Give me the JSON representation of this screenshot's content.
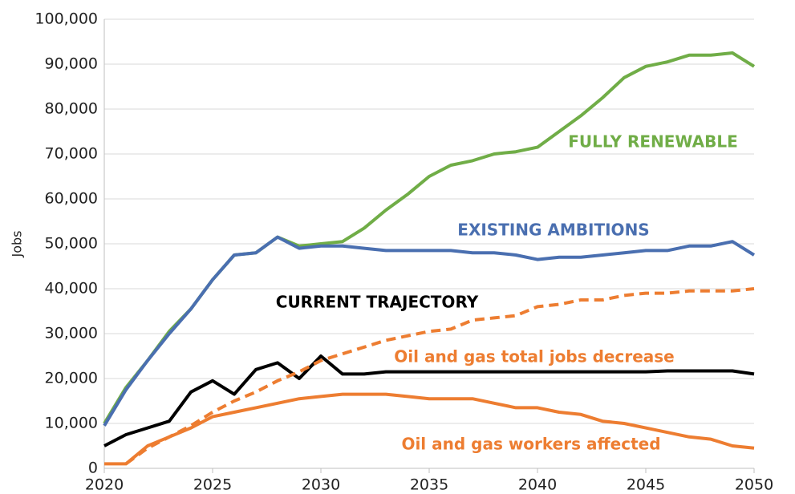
{
  "chart_data": {
    "type": "line",
    "y_label": "Jobs",
    "x": [
      2020,
      2021,
      2022,
      2023,
      2024,
      2025,
      2026,
      2027,
      2028,
      2029,
      2030,
      2031,
      2032,
      2033,
      2034,
      2035,
      2036,
      2037,
      2038,
      2039,
      2040,
      2041,
      2042,
      2043,
      2044,
      2045,
      2046,
      2047,
      2048,
      2049,
      2050
    ],
    "series": [
      {
        "name": "FULLY RENEWABLE",
        "color": "#70ad47",
        "dashed": false,
        "values": [
          10000,
          18000,
          24000,
          30500,
          35500,
          42000,
          47500,
          48000,
          51500,
          49500,
          50000,
          50500,
          53500,
          57500,
          61000,
          65000,
          67500,
          68500,
          70000,
          70500,
          71500,
          75000,
          78500,
          82500,
          87000,
          89500,
          90500,
          92000,
          92000,
          92500,
          89500
        ]
      },
      {
        "name": "EXISTING AMBITIONS",
        "color": "#4a6fb0",
        "dashed": false,
        "values": [
          9500,
          17500,
          24000,
          30000,
          35500,
          42000,
          47500,
          48000,
          51500,
          49000,
          49500,
          49500,
          49000,
          48500,
          48500,
          48500,
          48500,
          48000,
          48000,
          47500,
          46500,
          47000,
          47000,
          47500,
          48000,
          48500,
          48500,
          49500,
          49500,
          50500,
          47500
        ]
      },
      {
        "name": "CURRENT TRAJECTORY",
        "color": "#000000",
        "dashed": false,
        "values": [
          5000,
          7500,
          9000,
          10500,
          17000,
          19500,
          16500,
          22000,
          23500,
          20000,
          25000,
          21000,
          21000,
          21500,
          21500,
          21500,
          21500,
          21500,
          21500,
          21500,
          21500,
          21500,
          21500,
          21500,
          21500,
          21500,
          21700,
          21700,
          21700,
          21700,
          21000
        ]
      },
      {
        "name": "Oil and gas total jobs decrease",
        "color": "#ed7d31",
        "dashed": true,
        "values": [
          null,
          1000,
          4500,
          7000,
          9500,
          12500,
          15000,
          17000,
          19500,
          21500,
          24000,
          25500,
          27000,
          28500,
          29500,
          30500,
          31000,
          33000,
          33500,
          34000,
          36000,
          36500,
          37500,
          37500,
          38500,
          39000,
          39000,
          39500,
          39500,
          39500,
          40000
        ]
      },
      {
        "name": "Oil and gas workers affected",
        "color": "#ed7d31",
        "dashed": false,
        "values": [
          1000,
          1000,
          5000,
          7000,
          9000,
          11500,
          12500,
          13500,
          14500,
          15500,
          16000,
          16500,
          16500,
          16500,
          16000,
          15500,
          15500,
          15500,
          14500,
          13500,
          13500,
          12500,
          12000,
          10500,
          10000,
          9000,
          8000,
          7000,
          6500,
          5000,
          4500
        ]
      }
    ],
    "xlim": [
      2020,
      2050
    ],
    "xticks": [
      2020,
      2025,
      2030,
      2035,
      2040,
      2045,
      2050
    ],
    "ylim": [
      0,
      100000
    ],
    "yticks": [
      0,
      {
        "value": 10000,
        "label": "10,000"
      },
      {
        "value": 20000,
        "label": "20,000"
      },
      {
        "value": 30000,
        "label": "30,000"
      },
      {
        "value": 40000,
        "label": "40,000"
      },
      {
        "value": 50000,
        "label": "50,000"
      },
      {
        "value": 60000,
        "label": "60,000"
      },
      {
        "value": 70000,
        "label": "70,000"
      },
      {
        "value": 80000,
        "label": "80,000"
      },
      {
        "value": 90000,
        "label": "90,000"
      },
      {
        "value": 100000,
        "label": "100,000"
      }
    ],
    "grid": true
  }
}
